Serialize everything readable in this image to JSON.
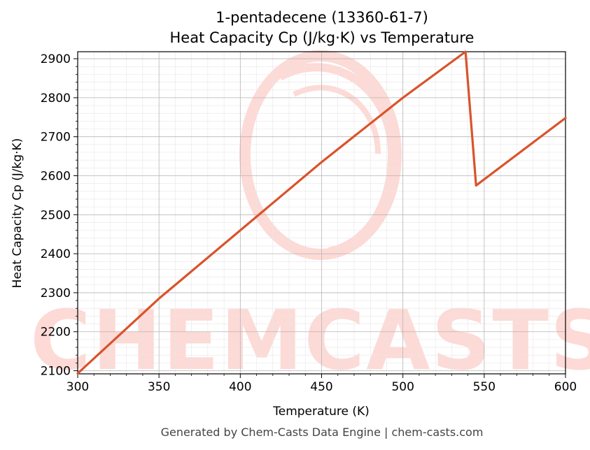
{
  "chart_data": {
    "type": "line",
    "title": "1-pentadecene (13360-61-7)",
    "subtitle": "Heat Capacity Cp (J/kg·K) vs Temperature",
    "xlabel": "Temperature (K)",
    "ylabel": "Heat Capacity Cp (J/kg·K)",
    "xlim": [
      300,
      600
    ],
    "ylim": [
      2092,
      2918
    ],
    "xticks": [
      300,
      350,
      400,
      450,
      500,
      550,
      600
    ],
    "yticks": [
      2100,
      2200,
      2300,
      2400,
      2500,
      2600,
      2700,
      2800,
      2900
    ],
    "grid": true,
    "series": [
      {
        "color": "#d9532b",
        "x": [
          300,
          350,
          400,
          450,
          500,
          538.5,
          545,
          600
        ],
        "y": [
          2093,
          2285,
          2460,
          2635,
          2800,
          2918,
          2575,
          2748
        ]
      }
    ]
  },
  "watermark": {
    "text": "CHEMCASTS",
    "color": "#fddad6"
  },
  "footer": "Generated by Chem-Casts Data Engine | chem-casts.com"
}
